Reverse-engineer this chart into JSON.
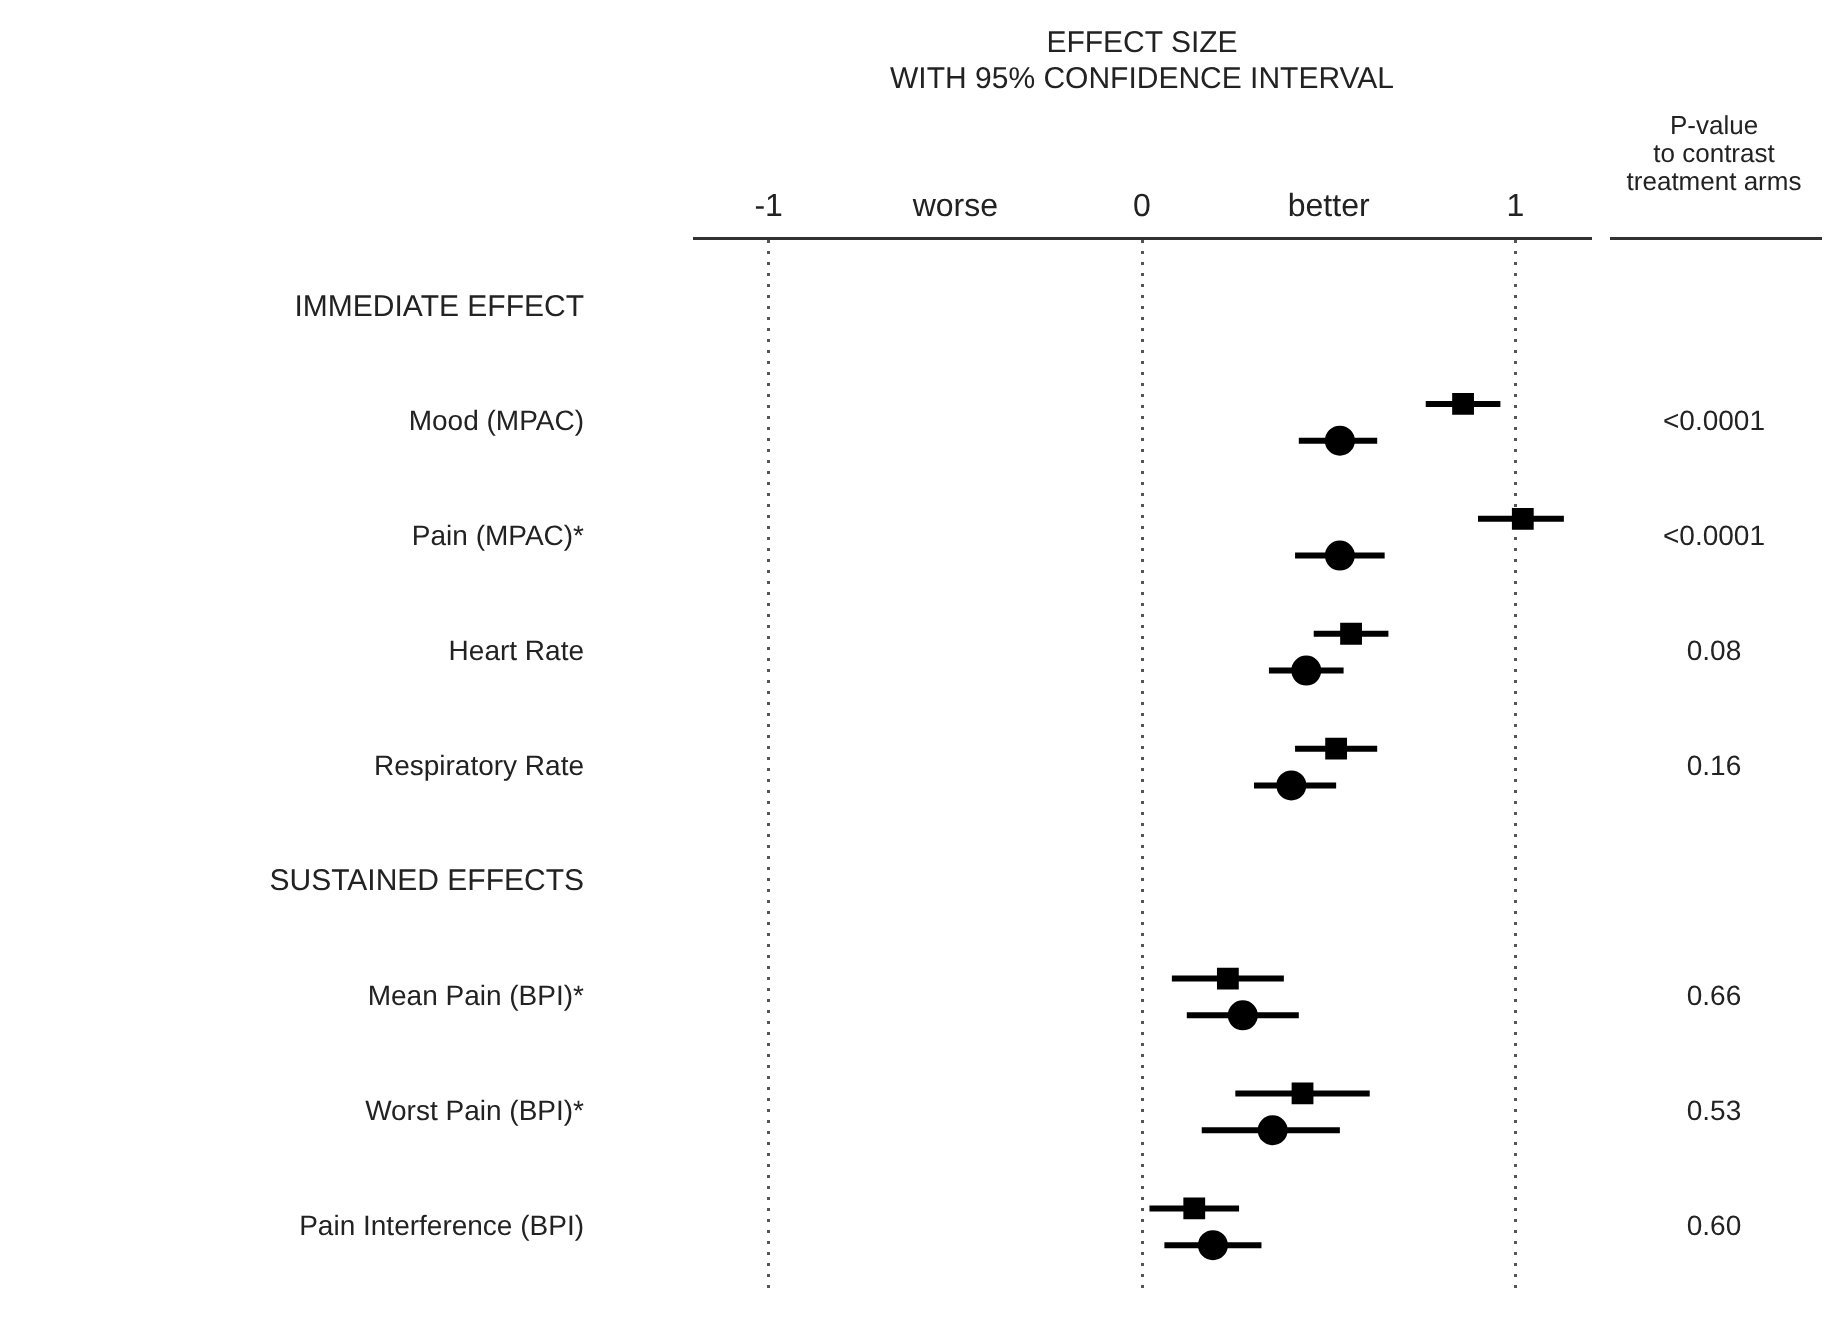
{
  "chart_data": {
    "type": "scatter",
    "orientation": "horizontal",
    "title": "EFFECT SIZE",
    "subtitle": "WITH 95% CONFIDENCE INTERVAL",
    "categories": [
      "IMMEDIATE EFFECT",
      "Mood (MPAC)",
      "Pain (MPAC)*",
      "Heart Rate",
      "Respiratory Rate",
      "SUSTAINED EFFECTS",
      "Mean Pain (BPI)*",
      "Worst Pain (BPI)*",
      "Pain Interference (BPI)"
    ],
    "series": [
      {
        "color": "#000000",
        "marker": "square",
        "values": [
          null,
          0.86,
          1.02,
          0.56,
          0.52,
          null,
          0.23,
          0.43,
          0.14
        ],
        "errors": [
          null,
          [
            0.76,
            0.96
          ],
          [
            0.9,
            1.13
          ],
          [
            0.46,
            0.66
          ],
          [
            0.41,
            0.63
          ],
          null,
          [
            0.08,
            0.38
          ],
          [
            0.25,
            0.61
          ],
          [
            0.02,
            0.26
          ]
        ]
      },
      {
        "color": "#000000",
        "marker": "circle",
        "values": [
          null,
          0.53,
          0.53,
          0.44,
          0.4,
          null,
          0.27,
          0.35,
          0.19
        ],
        "errors": [
          null,
          [
            0.42,
            0.63
          ],
          [
            0.41,
            0.65
          ],
          [
            0.34,
            0.54
          ],
          [
            0.3,
            0.52
          ],
          null,
          [
            0.12,
            0.42
          ],
          [
            0.16,
            0.53
          ],
          [
            0.06,
            0.32
          ]
        ]
      }
    ],
    "xlim": [
      -1.2,
      1.2
    ],
    "xticks": [
      -1,
      {
        "value": -0.5,
        "label": "worse"
      },
      0,
      {
        "value": 0.5,
        "label": "better"
      },
      1
    ],
    "grid": "x",
    "legend": false,
    "annotations": [
      "P-value\nto contrast\ntreatment arms",
      "<0.0001",
      "<0.0001",
      "0.08",
      "0.16",
      "0.66",
      "0.53",
      "0.60"
    ]
  }
}
